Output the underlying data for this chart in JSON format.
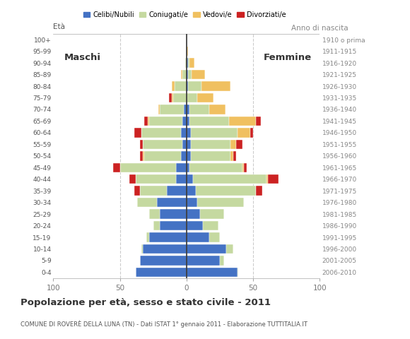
{
  "age_groups": [
    "0-4",
    "5-9",
    "10-14",
    "15-19",
    "20-24",
    "25-29",
    "30-34",
    "35-39",
    "40-44",
    "45-49",
    "50-54",
    "55-59",
    "60-64",
    "65-69",
    "70-74",
    "75-79",
    "80-84",
    "85-89",
    "90-94",
    "95-99",
    "100+"
  ],
  "birth_years": [
    "2006-2010",
    "2001-2005",
    "1996-2000",
    "1991-1995",
    "1986-1990",
    "1981-1985",
    "1976-1980",
    "1971-1975",
    "1966-1970",
    "1961-1965",
    "1956-1960",
    "1951-1955",
    "1946-1950",
    "1941-1945",
    "1936-1940",
    "1931-1935",
    "1926-1930",
    "1921-1925",
    "1916-1920",
    "1911-1915",
    "1910 o prima"
  ],
  "male_celibi": [
    38,
    35,
    33,
    28,
    20,
    20,
    22,
    15,
    8,
    8,
    4,
    3,
    4,
    3,
    2,
    0,
    0,
    0,
    0,
    0,
    0
  ],
  "male_coniugati": [
    0,
    0,
    1,
    2,
    5,
    8,
    15,
    20,
    30,
    42,
    28,
    30,
    30,
    25,
    18,
    10,
    9,
    3,
    1,
    0,
    0
  ],
  "male_vedovi": [
    0,
    0,
    0,
    0,
    0,
    0,
    0,
    0,
    0,
    0,
    1,
    0,
    0,
    1,
    1,
    1,
    2,
    1,
    0,
    0,
    0
  ],
  "male_divorziati": [
    0,
    0,
    0,
    0,
    0,
    0,
    0,
    4,
    5,
    5,
    2,
    2,
    5,
    3,
    0,
    2,
    0,
    0,
    0,
    0,
    0
  ],
  "female_celibi": [
    38,
    25,
    30,
    17,
    12,
    10,
    8,
    7,
    5,
    2,
    3,
    3,
    3,
    2,
    2,
    0,
    1,
    1,
    1,
    0,
    0
  ],
  "female_coniugati": [
    1,
    3,
    5,
    8,
    12,
    18,
    35,
    45,
    55,
    40,
    30,
    30,
    35,
    30,
    15,
    8,
    10,
    3,
    1,
    0,
    0
  ],
  "female_vedovi": [
    0,
    0,
    0,
    0,
    0,
    0,
    0,
    0,
    1,
    1,
    2,
    4,
    10,
    20,
    12,
    12,
    22,
    10,
    4,
    1,
    0
  ],
  "female_divorziati": [
    0,
    0,
    0,
    0,
    0,
    0,
    0,
    5,
    8,
    2,
    2,
    5,
    2,
    4,
    0,
    0,
    0,
    0,
    0,
    0,
    0
  ],
  "color_celibi": "#4472c4",
  "color_coniugati": "#c5d9a0",
  "color_vedovi": "#f0c060",
  "color_divorziati": "#cc2222",
  "color_axis": "#333333",
  "color_gridline": "#cccccc",
  "color_bg": "#ffffff",
  "title": "Popolazione per età, sesso e stato civile - 2011",
  "subtitle": "COMUNE DI ROVERÈ DELLA LUNA (TN) - Dati ISTAT 1° gennaio 2011 - Elaborazione TUTTITALIA.IT",
  "ylabel_left": "Età",
  "ylabel_right": "Anno di nascita",
  "label_maschi": "Maschi",
  "label_femmine": "Femmine",
  "legend_celibi": "Celibi/Nubili",
  "legend_coniugati": "Coniugati/e",
  "legend_vedovi": "Vedovi/e",
  "legend_divorziati": "Divorziati/e",
  "xlim": 100,
  "xticks": [
    -100,
    -50,
    0,
    50,
    100
  ],
  "xticklabels": [
    "100",
    "50",
    "0",
    "50",
    "100"
  ]
}
